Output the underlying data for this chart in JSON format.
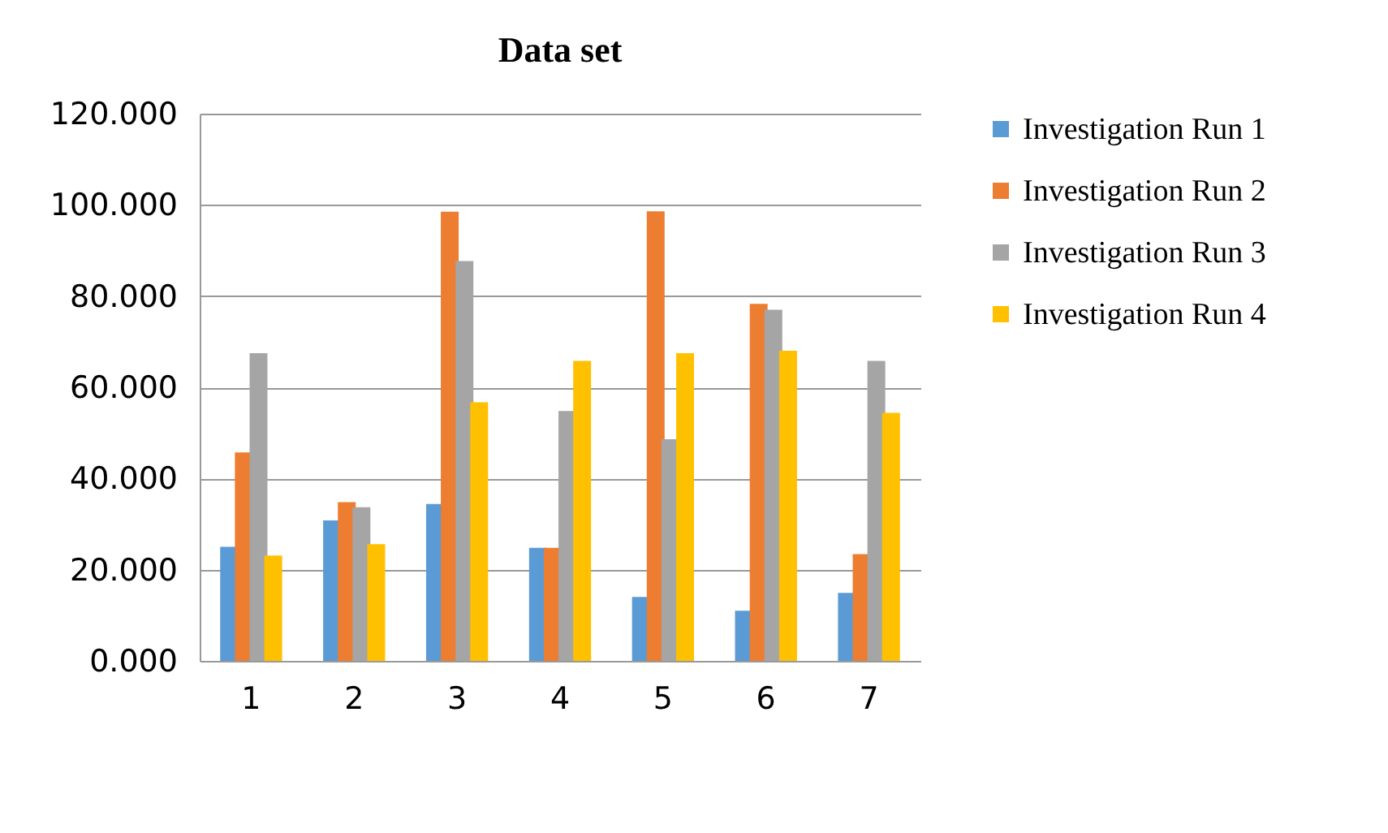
{
  "chart_data": {
    "type": "bar",
    "title": "Data set",
    "categories": [
      "1",
      "2",
      "3",
      "4",
      "5",
      "6",
      "7"
    ],
    "series": [
      {
        "name": "Investigation Run 1",
        "color": "#5b9bd5",
        "values": [
          25.0,
          30.8,
          34.4,
          24.8,
          14.0,
          11.0,
          14.9
        ]
      },
      {
        "name": "Investigation Run 2",
        "color": "#ed7d31",
        "values": [
          45.7,
          34.8,
          98.5,
          24.8,
          98.6,
          78.3,
          23.4
        ]
      },
      {
        "name": "Investigation Run 3",
        "color": "#a5a5a5",
        "values": [
          67.5,
          33.7,
          87.7,
          54.8,
          48.6,
          77.0,
          65.8
        ]
      },
      {
        "name": "Investigation Run 4",
        "color": "#ffc000",
        "values": [
          23.1,
          25.6,
          56.7,
          65.8,
          67.5,
          68.0,
          54.4
        ]
      }
    ],
    "ylim": [
      0,
      120
    ],
    "yticks": [
      {
        "value": 0,
        "label": "0.000"
      },
      {
        "value": 20,
        "label": "20.000"
      },
      {
        "value": 40,
        "label": "40.000"
      },
      {
        "value": 60,
        "label": "60.000"
      },
      {
        "value": 80,
        "label": "80.000"
      },
      {
        "value": 100,
        "label": "100.000"
      },
      {
        "value": 120,
        "label": "120.000"
      }
    ],
    "grid": "y",
    "legend": "right"
  }
}
